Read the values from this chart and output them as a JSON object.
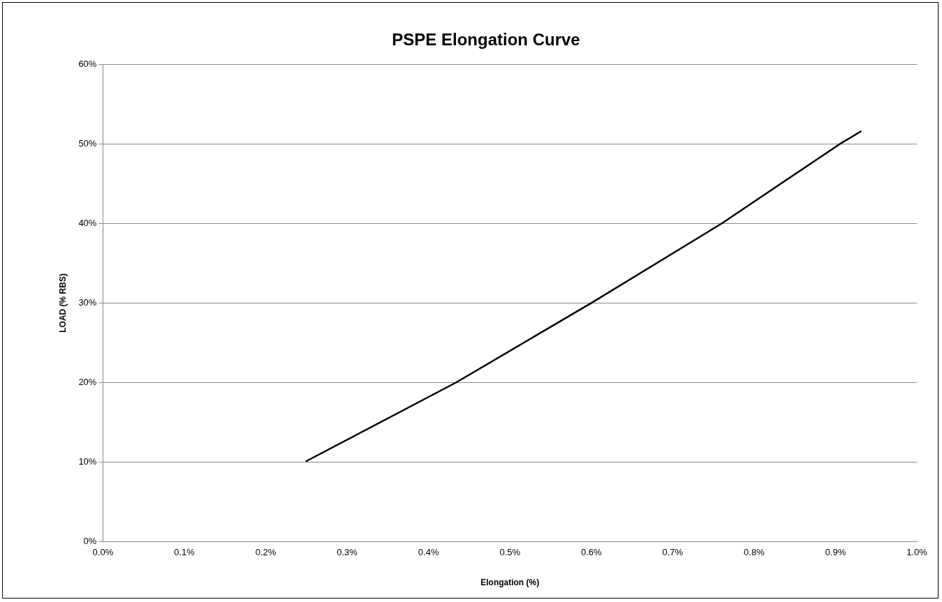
{
  "chart_data": {
    "type": "line",
    "title": "PSPE Elongation Curve",
    "xlabel": "Elongation (%)",
    "ylabel": "LOAD (% RBS)",
    "x": [
      0.25,
      0.434,
      0.6,
      0.76,
      0.905,
      0.931
    ],
    "series": [
      {
        "color": "#000000",
        "values": [
          10.1,
          20,
          30,
          40,
          50,
          51.6
        ]
      }
    ],
    "xlim": [
      0,
      1
    ],
    "xticks": [
      {
        "value": 0,
        "label": "0.0%"
      },
      {
        "value": 0.1,
        "label": "0.1%"
      },
      {
        "value": 0.2,
        "label": "0.2%"
      },
      {
        "value": 0.3,
        "label": "0.3%"
      },
      {
        "value": 0.4,
        "label": "0.4%"
      },
      {
        "value": 0.5,
        "label": "0.5%"
      },
      {
        "value": 0.6,
        "label": "0.6%"
      },
      {
        "value": 0.7,
        "label": "0.7%"
      },
      {
        "value": 0.8,
        "label": "0.8%"
      },
      {
        "value": 0.9,
        "label": "0.9%"
      },
      {
        "value": 1,
        "label": "1.0%"
      }
    ],
    "ylim": [
      0,
      60
    ],
    "yticks": [
      {
        "value": 0,
        "label": "0%"
      },
      {
        "value": 10,
        "label": "10%"
      },
      {
        "value": 20,
        "label": "20%"
      },
      {
        "value": 30,
        "label": "30%"
      },
      {
        "value": 40,
        "label": "40%"
      },
      {
        "value": 50,
        "label": "50%"
      },
      {
        "value": 60,
        "label": "60%"
      }
    ],
    "grid": "y",
    "legend": false,
    "marker": "none",
    "line_style": "solid"
  }
}
